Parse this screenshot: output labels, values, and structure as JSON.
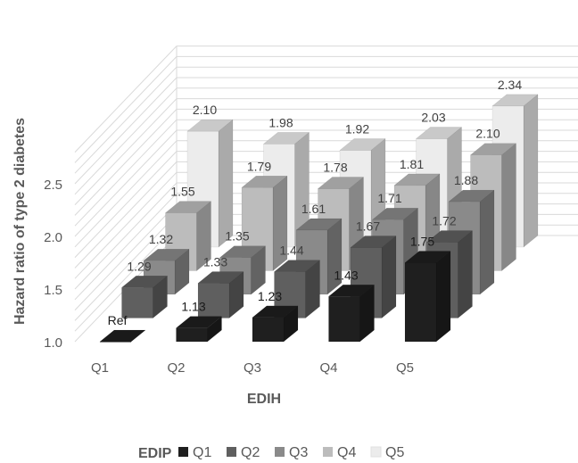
{
  "chart_data": {
    "type": "bar",
    "subtype": "3d-clustered",
    "title": "",
    "ylabel": "Hazard ratio of type 2 diabetes",
    "xlabel": "EDIH",
    "ylim": [
      1.0,
      2.5
    ],
    "yticks": [
      "1.0",
      "1.5",
      "2.0",
      "2.5"
    ],
    "grid": true,
    "legend_position": "bottom",
    "legend_title": "EDIP",
    "categories": [
      "Q1",
      "Q2",
      "Q3",
      "Q4",
      "Q5"
    ],
    "series": [
      {
        "name": "Q1",
        "color": "#1f1f1f",
        "values": [
          1.0,
          1.13,
          1.23,
          1.43,
          1.75
        ],
        "labels": [
          "Ref",
          "1.13",
          "1.23",
          "1.43",
          "1.75"
        ]
      },
      {
        "name": "Q2",
        "color": "#5f5f5f",
        "values": [
          1.29,
          1.33,
          1.44,
          1.67,
          1.72
        ],
        "labels": [
          "1.29",
          "1.33",
          "1.44",
          "1.67",
          "1.72"
        ]
      },
      {
        "name": "Q3",
        "color": "#8a8a8a",
        "values": [
          1.32,
          1.35,
          1.61,
          1.71,
          1.88
        ],
        "labels": [
          "1.32",
          "1.35",
          "1.61",
          "1.71",
          "1.88"
        ]
      },
      {
        "name": "Q4",
        "color": "#bcbcbc",
        "values": [
          1.55,
          1.79,
          1.78,
          1.81,
          2.1
        ],
        "labels": [
          "1.55",
          "1.79",
          "1.78",
          "1.81",
          "2.10"
        ]
      },
      {
        "name": "Q5",
        "color": "#ececec",
        "values": [
          2.1,
          1.98,
          1.92,
          2.03,
          2.34
        ],
        "labels": [
          "2.10",
          "1.98",
          "1.92",
          "2.03",
          "2.34"
        ]
      }
    ]
  }
}
